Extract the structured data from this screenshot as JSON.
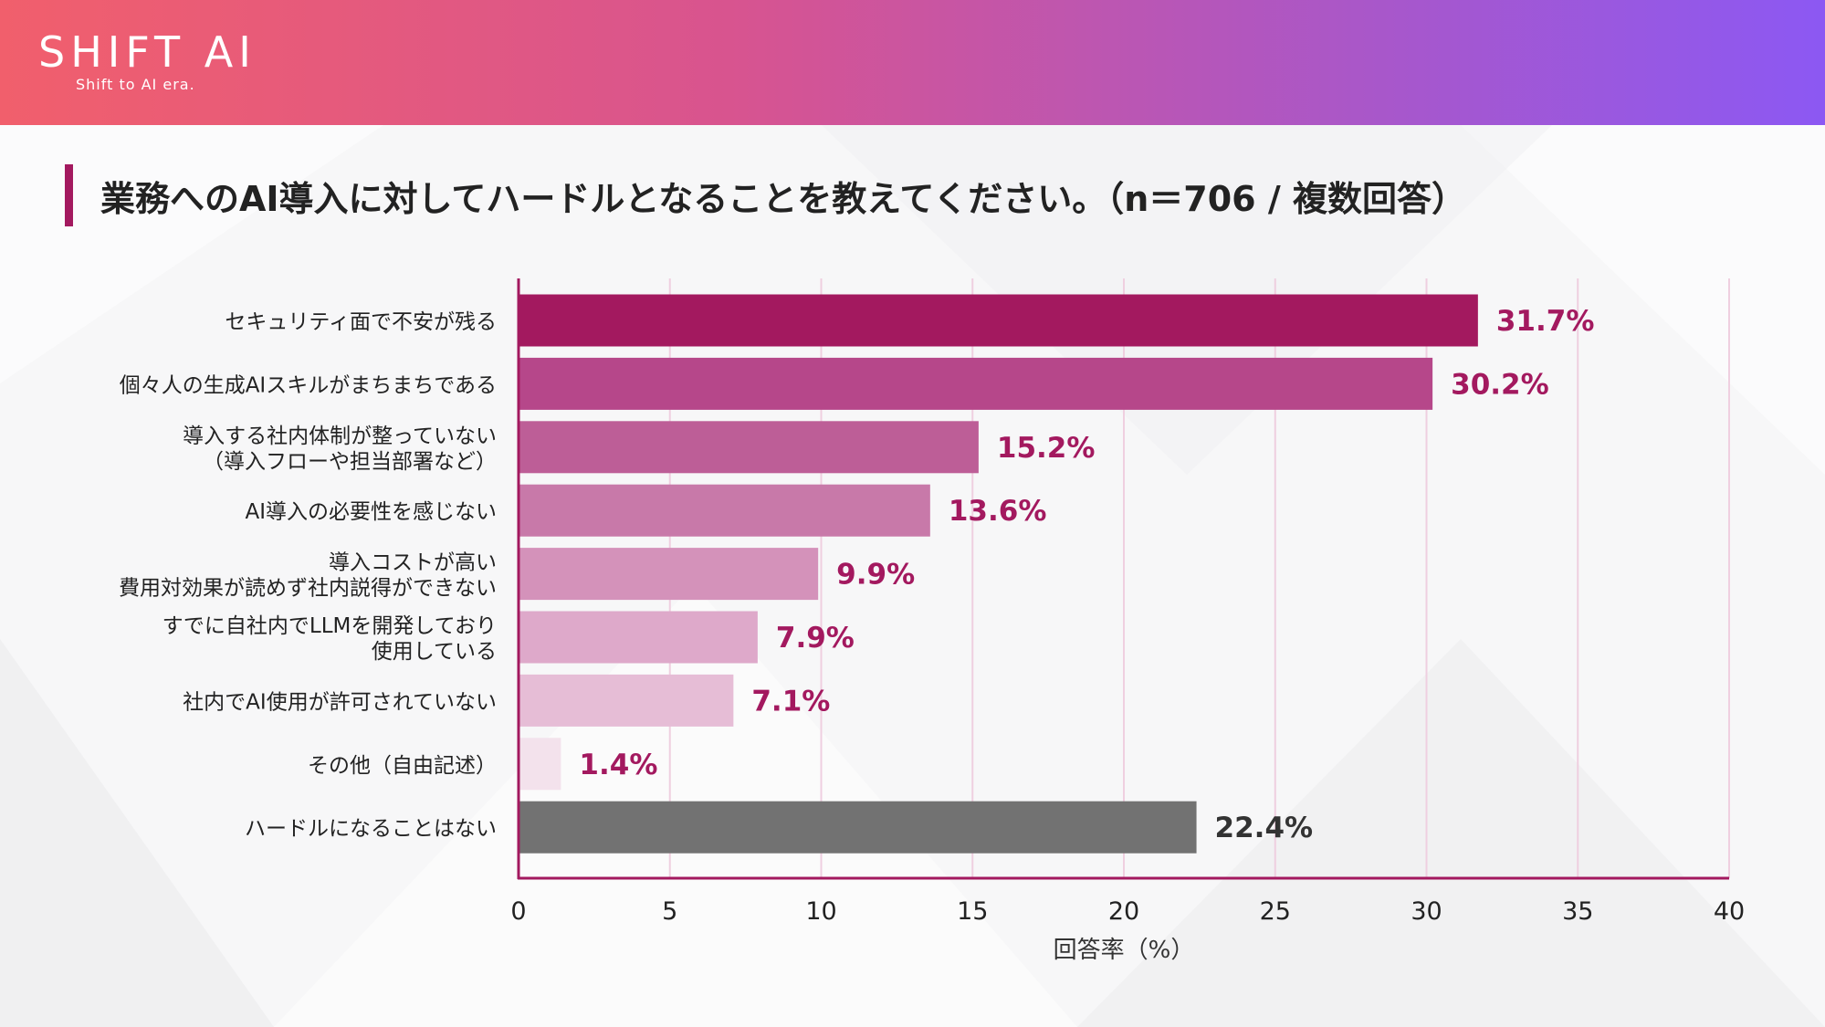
{
  "brand": {
    "name": "SHIFT AI",
    "tagline": "Shift to AI era."
  },
  "colors": {
    "accent": "#a3195f",
    "bars": [
      "#a3195f",
      "#b6478a",
      "#bd5e97",
      "#c879a9",
      "#d492ba",
      "#dea9ca",
      "#e6bdd6",
      "#f3e2ec",
      "#727272"
    ],
    "label_highlight": "#a3195f",
    "label_other": "#333333"
  },
  "chart_data": {
    "type": "bar",
    "orientation": "horizontal",
    "title": "業務へのAI導入に対してハードルとなることを教えてください。（n＝706 / 複数回答）",
    "xlabel": "回答率（%）",
    "ylabel": "",
    "xlim": [
      0,
      40
    ],
    "xticks": [
      "0",
      "5",
      "10",
      "15",
      "20",
      "25",
      "30",
      "35",
      "40"
    ],
    "grid": true,
    "categories": [
      [
        "セキュリティ面で不安が残る"
      ],
      [
        "個々人の生成AIスキルがまちまちである"
      ],
      [
        "導入する社内体制が整っていない",
        "（導入フローや担当部署など）"
      ],
      [
        "AI導入の必要性を感じない"
      ],
      [
        "導入コストが高い",
        "費用対効果が読めず社内説得ができない"
      ],
      [
        "すでに自社内でLLMを開発しており",
        "使用している"
      ],
      [
        "社内でAI使用が許可されていない"
      ],
      [
        "その他（自由記述）"
      ],
      [
        "ハードルになることはない"
      ]
    ],
    "values": [
      31.7,
      30.2,
      15.2,
      13.6,
      9.9,
      7.9,
      7.1,
      1.4,
      22.4
    ],
    "value_labels": [
      "31.7%",
      "30.2%",
      "15.2%",
      "13.6%",
      "9.9%",
      "7.9%",
      "7.1%",
      "1.4%",
      "22.4%"
    ]
  }
}
